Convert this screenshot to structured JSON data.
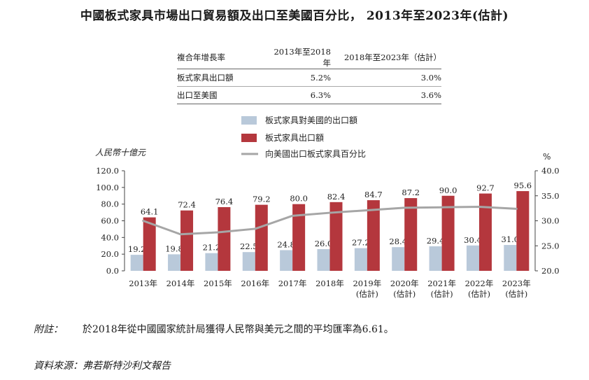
{
  "title": "中國板式家具市場出口貿易額及出口至美國百分比， 2013年至2023年(估計)",
  "cagr_table": {
    "header": [
      "複合年增長率",
      "2013年至2018年",
      "2018年至2023年（估計）"
    ],
    "rows": [
      [
        "板式家具出口額",
        "5.2%",
        "3.0%"
      ],
      [
        "出口至美國",
        "6.3%",
        "3.6%"
      ]
    ]
  },
  "chart_data": {
    "type": "bar",
    "categories": [
      "2013年",
      "2014年",
      "2015年",
      "2016年",
      "2017年",
      "2018年",
      "2019年\n(估計)",
      "2020年\n(估計)",
      "2021年\n(估計)",
      "2022年\n(估計)",
      "2023年\n(估計)"
    ],
    "series": [
      {
        "name": "板式家具對美國的出口額",
        "type": "bar",
        "color": "#b9c9da",
        "values": [
          19.2,
          19.8,
          21.2,
          22.5,
          24.8,
          26.0,
          27.2,
          28.4,
          29.4,
          30.4,
          31.0
        ]
      },
      {
        "name": "板式家具出口額",
        "type": "bar",
        "color": "#b4373d",
        "values": [
          64.1,
          72.4,
          76.4,
          79.2,
          80.0,
          82.4,
          84.7,
          87.2,
          90.0,
          92.7,
          95.6
        ]
      },
      {
        "name": "向美國出口板式家具百分比",
        "type": "line",
        "axis": "right",
        "color": "#a6a6a6",
        "values": [
          30.0,
          27.3,
          27.7,
          28.4,
          31.0,
          31.6,
          32.1,
          32.6,
          32.7,
          32.8,
          32.4
        ]
      }
    ],
    "ylabel": "人民幣十億元",
    "ylim": [
      0,
      120
    ],
    "yticks": [
      "0.0",
      "20.0",
      "40.0",
      "60.0",
      "80.0",
      "100.0",
      "120.0"
    ],
    "y2label": "%",
    "y2lim": [
      20,
      40
    ],
    "y2ticks": [
      "20.0",
      "25.0",
      "30.0",
      "35.0",
      "40.0"
    ],
    "legend_position": "top-center"
  },
  "note": {
    "label": "附註：",
    "text": "於2018年從中國國家統計局獲得人民幣與美元之間的平均匯率為6.61。"
  },
  "source": "資料來源：弗若斯特沙利文報告"
}
